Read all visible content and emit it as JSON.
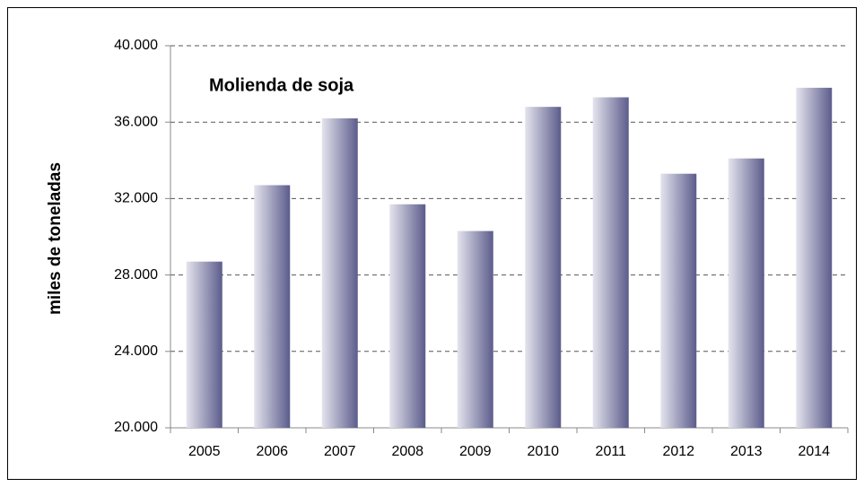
{
  "chart_data": {
    "type": "bar",
    "title": "Molienda de soja",
    "y_label": "miles de toneladas",
    "categories": [
      "2005",
      "2006",
      "2007",
      "2008",
      "2009",
      "2010",
      "2011",
      "2012",
      "2013",
      "2014"
    ],
    "values": [
      28700,
      32700,
      36200,
      31700,
      30300,
      36800,
      37300,
      33300,
      34100,
      37800
    ],
    "color": "#5c5c8c",
    "ylim": [
      20000,
      40000
    ],
    "yticks": [
      {
        "value": 20000,
        "label": "20.000"
      },
      {
        "value": 24000,
        "label": "24.000"
      },
      {
        "value": 28000,
        "label": "28.000"
      },
      {
        "value": 32000,
        "label": "32.000"
      },
      {
        "value": 36000,
        "label": "36.000"
      },
      {
        "value": 40000,
        "label": "40.000"
      }
    ],
    "grid": true
  }
}
